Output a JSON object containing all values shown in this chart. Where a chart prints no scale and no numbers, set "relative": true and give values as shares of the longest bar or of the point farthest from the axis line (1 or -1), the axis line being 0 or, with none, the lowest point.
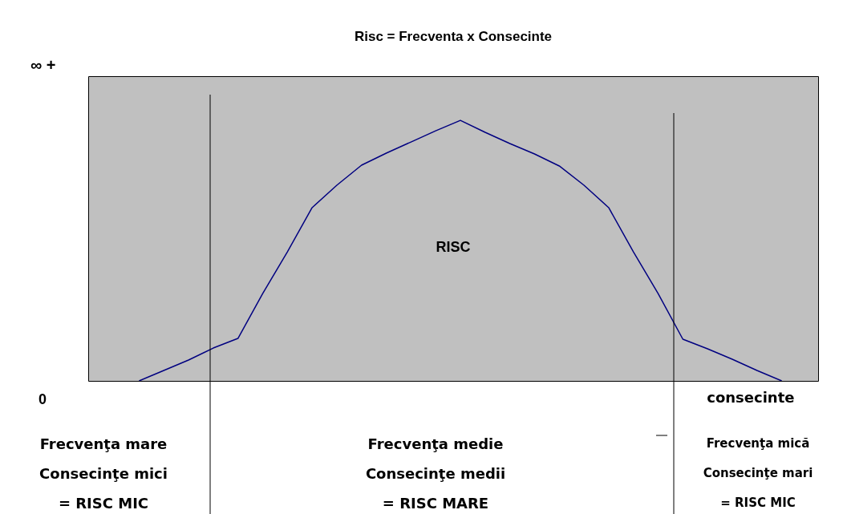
{
  "chart_data": {
    "type": "line",
    "title": "Risc = Frecventa x Consecinte",
    "xlabel": "consecinte",
    "relative": true,
    "tick_labels": false,
    "color": "#000080",
    "line_style": "solid",
    "categories": [
      null,
      null,
      null,
      null,
      null,
      null,
      null,
      null,
      null,
      null,
      null,
      null,
      null,
      null,
      null,
      null,
      null,
      null,
      null,
      null,
      null,
      null,
      null,
      null,
      null,
      null,
      null
    ],
    "values": [
      0,
      0.04,
      0.08,
      0.126,
      0.163,
      0.335,
      0.495,
      0.665,
      0.751,
      0.828,
      0.874,
      0.917,
      0.96,
      1,
      0.954,
      0.911,
      0.871,
      0.825,
      0.751,
      0.665,
      0.495,
      0.335,
      0.16,
      0.123,
      0.083,
      0.04,
      0
    ],
    "annotations": [
      "∞ +",
      "0",
      "RISC",
      "Frecvenţa mare\nConsecinţe mici\n= RISC MIC",
      "Frecvenţa medie\nConsecinţe medii\n= RISC MARE",
      "Frecvenţa mică\nConsecinţe mari\n= RISC MIC"
    ]
  }
}
